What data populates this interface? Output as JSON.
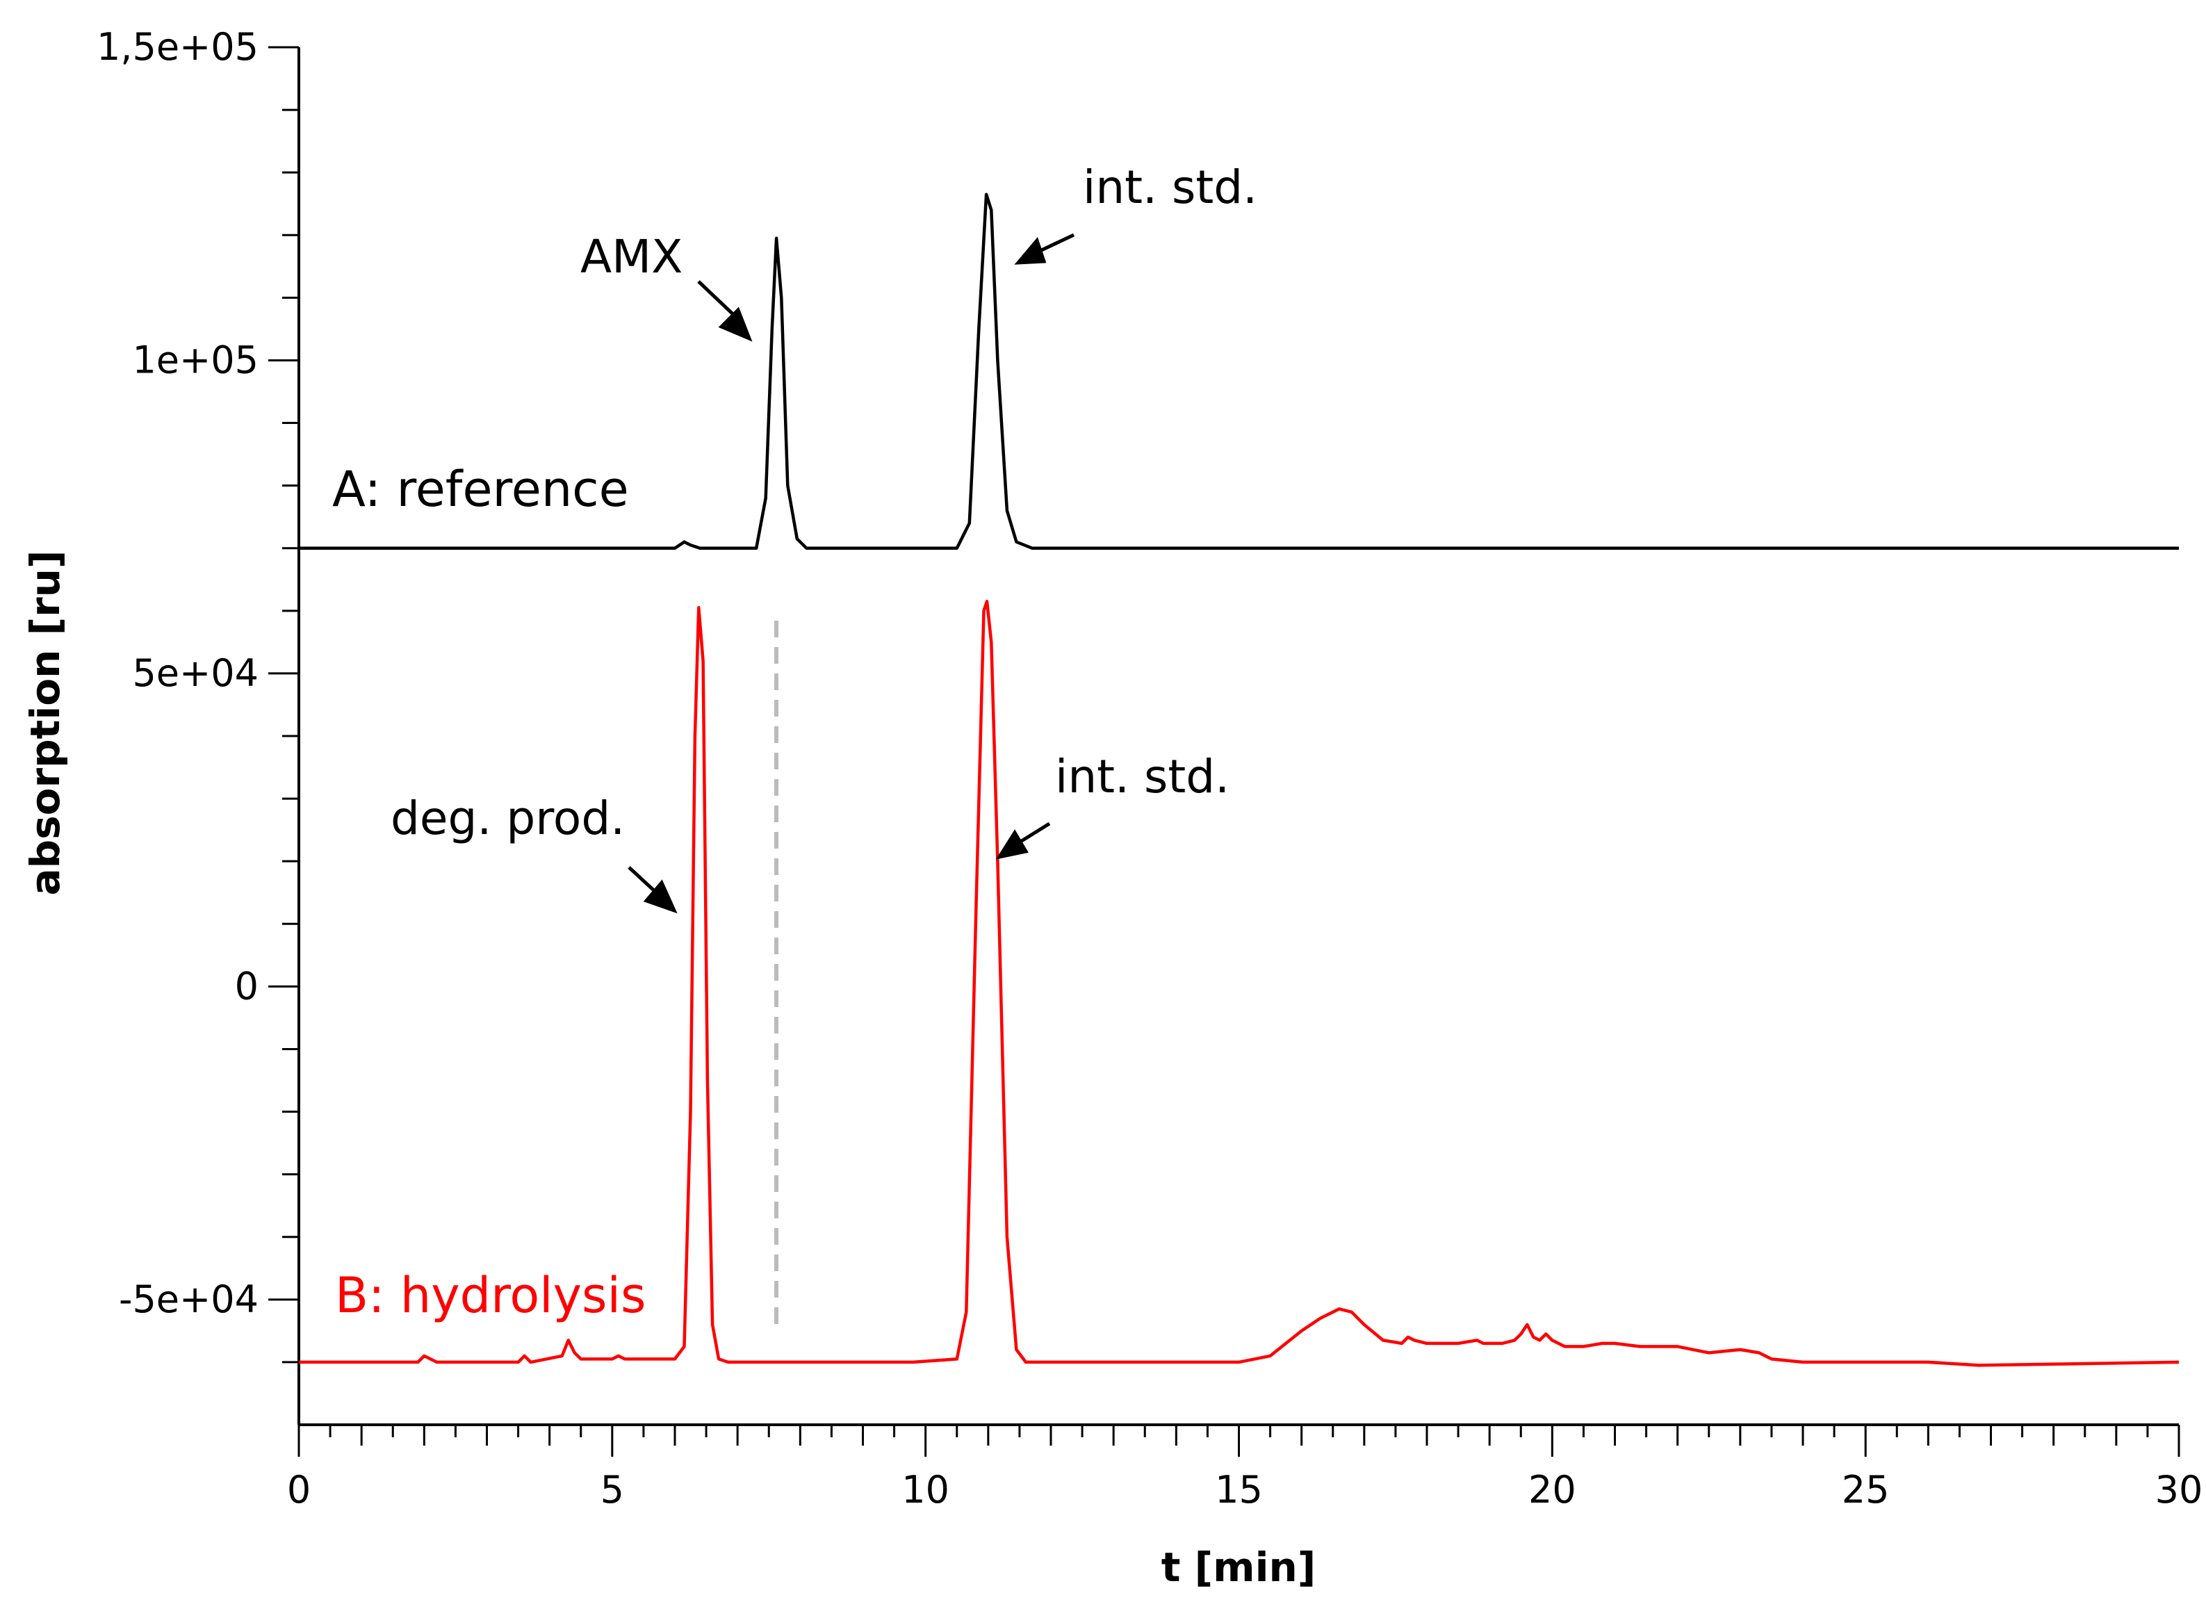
{
  "chart_data": {
    "type": "line",
    "xlabel": "t [min]",
    "ylabel": "absorption [ru]",
    "xlim": [
      0,
      30
    ],
    "ylim": [
      -70000,
      150000
    ],
    "x_ticks": [
      0,
      5,
      10,
      15,
      20,
      25,
      30
    ],
    "x_tick_labels": [
      "0",
      "5",
      "10",
      "15",
      "20",
      "25",
      "30"
    ],
    "y_ticks": [
      -50000,
      0,
      50000,
      100000,
      150000
    ],
    "y_tick_labels": [
      "-5e+04",
      "0",
      "5e+04",
      "1e+05",
      "1,5e+05"
    ],
    "grid": false,
    "colors": {
      "reference": "#000000",
      "hydrolysis": "#ff0000",
      "marker": "#bbbbbb",
      "axis": "#000000"
    },
    "series": [
      {
        "name": "A: reference",
        "color": "#000000",
        "x": [
          0,
          6.0,
          6.15,
          6.25,
          6.4,
          7.3,
          7.45,
          7.55,
          7.62,
          7.7,
          7.8,
          7.95,
          8.1,
          10.5,
          10.7,
          10.85,
          10.97,
          11.05,
          11.15,
          11.3,
          11.45,
          11.7,
          30
        ],
        "values": [
          70000,
          70000,
          71000,
          70500,
          70000,
          70000,
          78000,
          105000,
          119500,
          110000,
          80000,
          71500,
          70000,
          70000,
          74000,
          105000,
          126500,
          124000,
          100000,
          76000,
          71000,
          70000,
          70000
        ]
      },
      {
        "name": "B: hydrolysis",
        "color": "#ff0000",
        "x": [
          0,
          1.9,
          2.0,
          2.1,
          2.2,
          3.5,
          3.6,
          3.7,
          4.2,
          4.3,
          4.4,
          4.5,
          4.6,
          5.0,
          5.1,
          5.2,
          6.0,
          6.15,
          6.25,
          6.32,
          6.38,
          6.45,
          6.52,
          6.6,
          6.7,
          6.85,
          7.0,
          9.8,
          10.5,
          10.65,
          10.8,
          10.93,
          10.98,
          11.05,
          11.15,
          11.3,
          11.45,
          11.6,
          15.0,
          15.5,
          16.0,
          16.3,
          16.6,
          16.8,
          17.0,
          17.3,
          17.6,
          17.7,
          17.8,
          18.0,
          18.5,
          18.8,
          18.9,
          19.2,
          19.4,
          19.5,
          19.6,
          19.7,
          19.8,
          19.9,
          20.0,
          20.2,
          20.5,
          20.8,
          21.0,
          21.4,
          22.0,
          22.5,
          23.0,
          23.3,
          23.5,
          24.0,
          26.0,
          26.8,
          30
        ],
        "values": [
          -60000,
          -60000,
          -59000,
          -59500,
          -60000,
          -60000,
          -59000,
          -60000,
          -59000,
          -56500,
          -58500,
          -59500,
          -59500,
          -59500,
          -59000,
          -59500,
          -59500,
          -57500,
          -20000,
          40000,
          60500,
          52000,
          -15000,
          -54000,
          -59500,
          -60000,
          -60000,
          -60000,
          -59500,
          -52000,
          10000,
          60000,
          61500,
          55000,
          20000,
          -40000,
          -58000,
          -60000,
          -60000,
          -59000,
          -55000,
          -53000,
          -51500,
          -52000,
          -54000,
          -56500,
          -57000,
          -56000,
          -56500,
          -57000,
          -57000,
          -56500,
          -57000,
          -57000,
          -56500,
          -55500,
          -54000,
          -56000,
          -56500,
          -55500,
          -56500,
          -57500,
          -57500,
          -57000,
          -57000,
          -57500,
          -57500,
          -58500,
          -58000,
          -58500,
          -59500,
          -60000,
          -60000,
          -60500,
          -60000
        ]
      }
    ],
    "annotations": [
      {
        "text": "AMX"
      },
      {
        "text": "int. std."
      },
      {
        "text": "deg. prod."
      },
      {
        "text": "int. std."
      }
    ],
    "series_labels": [
      "A: reference",
      "B: hydrolysis"
    ]
  }
}
